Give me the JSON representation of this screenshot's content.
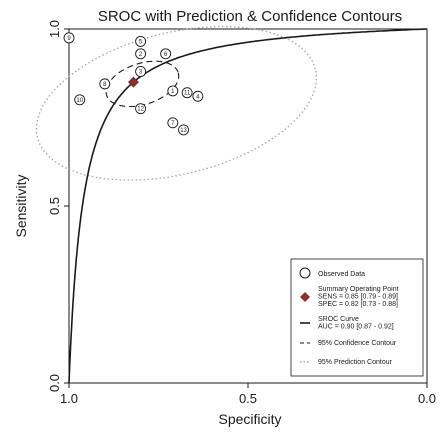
{
  "chart_data": {
    "type": "scatter",
    "title": "SROC with Prediction & Confidence Contours",
    "xlabel": "Specificity",
    "ylabel": "Sensitivity",
    "x_reversed": true,
    "xlim": [
      0,
      1
    ],
    "ylim": [
      0,
      1
    ],
    "xticks": [
      {
        "value": 1.0,
        "label": "1.0"
      },
      {
        "value": 0.5,
        "label": "0.5"
      },
      {
        "value": 0.0,
        "label": "0.0"
      }
    ],
    "yticks": [
      {
        "value": 0.0,
        "label": "0.0"
      },
      {
        "value": 0.5,
        "label": "0.5"
      },
      {
        "value": 1.0,
        "label": "1.0"
      }
    ],
    "grid": false,
    "legend_position": "bottom-right",
    "observed_data": [
      {
        "label": "9",
        "spec": 1.0,
        "sens": 0.975
      },
      {
        "label": "5",
        "spec": 0.8,
        "sens": 0.965
      },
      {
        "label": "2",
        "spec": 0.8,
        "sens": 0.93
      },
      {
        "label": "6",
        "spec": 0.73,
        "sens": 0.93
      },
      {
        "label": "3",
        "spec": 0.8,
        "sens": 0.88
      },
      {
        "label": "8",
        "spec": 0.9,
        "sens": 0.845
      },
      {
        "label": "1",
        "spec": 0.71,
        "sens": 0.825
      },
      {
        "label": "11",
        "spec": 0.67,
        "sens": 0.82
      },
      {
        "label": "4",
        "spec": 0.64,
        "sens": 0.81
      },
      {
        "label": "10",
        "spec": 0.97,
        "sens": 0.8
      },
      {
        "label": "12",
        "spec": 0.8,
        "sens": 0.775
      },
      {
        "label": "7",
        "spec": 0.71,
        "sens": 0.735
      },
      {
        "label": "13",
        "spec": 0.68,
        "sens": 0.715
      }
    ],
    "summary_point": {
      "spec": 0.82,
      "sens": 0.85
    },
    "sroc_curve": {
      "sens": 0.85,
      "spec": 0.82,
      "slope": 1.0
    },
    "confidence_contour": {
      "center_spec": 0.795,
      "center_sens": 0.845,
      "rx": 0.105,
      "ry": 0.058,
      "angle_deg": 18
    },
    "prediction_contour": {
      "center_spec": 0.7,
      "center_sens": 0.79,
      "rx": 0.4,
      "ry": 0.2,
      "angle_deg": 14
    },
    "colors": {
      "axis": "#1a1a1a",
      "curve": "#1a1a1a",
      "summary": "#8b2f2f",
      "confidence": "#1a1a1a",
      "prediction": "#a8a8a8"
    },
    "legend": [
      {
        "type": "observed",
        "label": "Observed Data"
      },
      {
        "type": "summary",
        "lines": [
          "Summary Operating Point",
          "SENS = 0.85 [0.79 - 0.89]",
          "SPEC = 0.82 [0.73 - 0.88]"
        ]
      },
      {
        "type": "sroc",
        "lines": [
          "SROC Curve",
          "AUC = 0.90 [0.87 - 0.92]"
        ]
      },
      {
        "type": "confidence",
        "label": "95% Confidence Contour"
      },
      {
        "type": "prediction",
        "label": "95% Prediction Contour"
      }
    ]
  }
}
